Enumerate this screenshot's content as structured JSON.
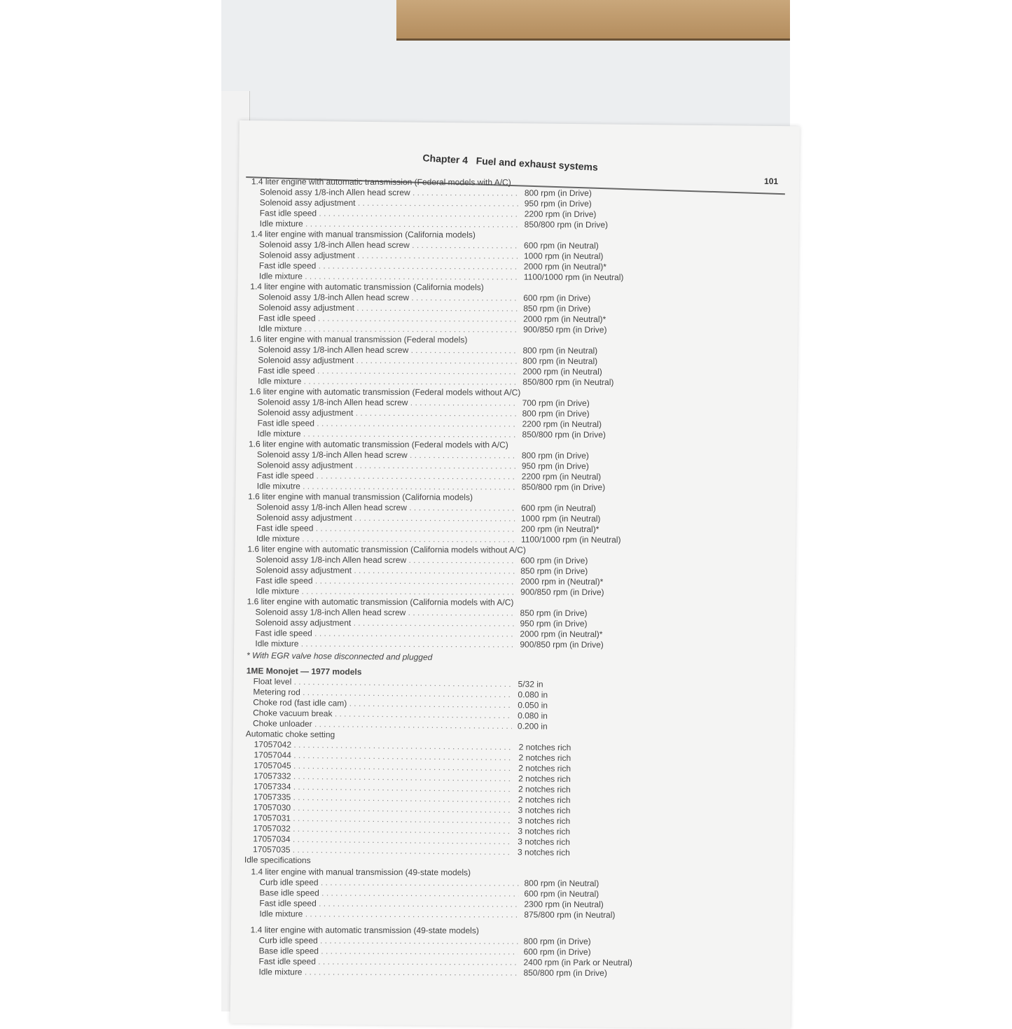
{
  "header": {
    "chapter": "Chapter 4",
    "title": "Fuel and exhaust systems",
    "page": "101"
  },
  "sections": [
    {
      "heading": "1.4 liter engine with automatic transmission (Federal models with A/C)",
      "rows": [
        [
          "Solenoid assy 1/8-inch Allen head screw",
          "800 rpm (in Drive)"
        ],
        [
          "Solenoid assy adjustment",
          "950 rpm (in Drive)"
        ],
        [
          "Fast idle speed",
          "2200 rpm (in Drive)"
        ],
        [
          "Idle mixture",
          "850/800 rpm (in Drive)"
        ]
      ]
    },
    {
      "heading": "1.4 liter engine with manual transmission (California models)",
      "rows": [
        [
          "Solenoid assy 1/8-inch Allen head screw",
          "600 rpm (in Neutral)"
        ],
        [
          "Solenoid assy adjustment",
          "1000 rpm (in Neutral)"
        ],
        [
          "Fast idle speed",
          "2000 rpm (in Neutral)*"
        ],
        [
          "Idle mixture",
          "1100/1000 rpm (in Neutral)"
        ]
      ]
    },
    {
      "heading": "1.4 liter engine with automatic transmission (California models)",
      "rows": [
        [
          "Solenoid assy 1/8-inch Allen head screw",
          "600 rpm (in Drive)"
        ],
        [
          "Solenoid assy adjustment",
          "850 rpm (in Drive)"
        ],
        [
          "Fast idle speed",
          "2000 rpm (in Neutral)*"
        ],
        [
          "Idle mixture",
          "900/850 rpm (in Drive)"
        ]
      ]
    },
    {
      "heading": "1.6 liter engine with manual transmission (Federal models)",
      "rows": [
        [
          "Solenoid assy 1/8-inch Allen head screw",
          "800 rpm (in Neutral)"
        ],
        [
          "Solenoid assy adjustment",
          "800 rpm (in Neutral)"
        ],
        [
          "Fast idle speed",
          "2000 rpm (in Neutral)"
        ],
        [
          "Idle mixture",
          "850/800 rpm (in Neutral)"
        ]
      ]
    },
    {
      "heading": "1.6 liter engine with automatic transmission (Federal models without A/C)",
      "rows": [
        [
          "Solenoid assy 1/8-inch Allen head screw",
          "700 rpm (in Drive)"
        ],
        [
          "Solenoid assy adjustment",
          "800 rpm (in Drive)"
        ],
        [
          "Fast idle speed",
          "2200 rpm (in Neutral)"
        ],
        [
          "Idle mixture",
          "850/800 rpm (in Drive)"
        ]
      ]
    },
    {
      "heading": "1.6 liter engine with automatic transmission (Federal models with A/C)",
      "rows": [
        [
          "Solenoid assy 1/8-inch Allen head screw",
          "800 rpm (in Drive)"
        ],
        [
          "Solenoid assy adjustment",
          "950 rpm (in Drive)"
        ],
        [
          "Fast idle speed",
          "2200 rpm (in Neutral)"
        ],
        [
          "Idle mixutre",
          "850/800 rpm (in Drive)"
        ]
      ]
    },
    {
      "heading": "1.6 liter engine with manual transmission (California models)",
      "rows": [
        [
          "Solenoid assy 1/8-inch Allen head screw",
          "600 rpm (in Neutral)"
        ],
        [
          "Solenoid assy adjustment",
          "1000 rpm (in Neutral)"
        ],
        [
          "Fast idle speed",
          "200 rpm (in Neutral)*"
        ],
        [
          "Idle mixture",
          "1100/1000 rpm (in Neutral)"
        ]
      ]
    },
    {
      "heading": "1.6 liter engine with automatic transmission (California models without A/C)",
      "rows": [
        [
          "Solenoid assy 1/8-inch Allen head screw",
          "600 rpm (in Drive)"
        ],
        [
          "Solenoid assy adjustment",
          "850 rpm (in Drive)"
        ],
        [
          "Fast idle speed",
          "2000 rpm in (Neutral)*"
        ],
        [
          "Idle mixture",
          "900/850 rpm (in Drive)"
        ]
      ]
    },
    {
      "heading": "1.6 liter engine with automatic transmission (California models with A/C)",
      "rows": [
        [
          "Solenoid assy 1/8-inch Allen head screw",
          "850 rpm (in Drive)"
        ],
        [
          "Solenoid assy adjustment",
          "950 rpm (in Drive)"
        ],
        [
          "Fast idle speed",
          "2000 rpm (in Neutral)*"
        ],
        [
          "Idle mixture",
          "900/850 rpm (in Drive)"
        ]
      ]
    }
  ],
  "footnote": "* With EGR valve hose disconnected and plugged",
  "monojet": {
    "heading": "1ME Monojet — 1977 models",
    "rows": [
      [
        "Float level",
        "5/32 in"
      ],
      [
        "Metering rod",
        "0.080 in"
      ],
      [
        "Choke rod (fast idle cam)",
        "0.050 in"
      ],
      [
        "Choke vacuum break",
        "0.080 in"
      ],
      [
        "Choke unloader",
        "0.200 in"
      ]
    ],
    "choke_heading": "Automatic choke setting",
    "choke_rows": [
      [
        "17057042",
        "2 notches rich"
      ],
      [
        "17057044",
        "2 notches rich"
      ],
      [
        "17057045",
        "2 notches rich"
      ],
      [
        "17057332",
        "2 notches rich"
      ],
      [
        "17057334",
        "2 notches rich"
      ],
      [
        "17057335",
        "2 notches rich"
      ],
      [
        "17057030",
        "3 notches rich"
      ],
      [
        "17057031",
        "3 notches rich"
      ],
      [
        "17057032",
        "3 notches rich"
      ],
      [
        "17057034",
        "3 notches rich"
      ],
      [
        "17057035",
        "3 notches rich"
      ]
    ],
    "idle_heading": "Idle specifications",
    "idle_sections": [
      {
        "heading": "1.4 liter engine with manual transmission (49-state models)",
        "rows": [
          [
            "Curb idle speed",
            "800 rpm (in Neutral)"
          ],
          [
            "Base idle speed",
            "600 rpm (in Neutral)"
          ],
          [
            "Fast idle speed",
            "2300 rpm (in Neutral)"
          ],
          [
            "Idle mixture",
            "875/800 rpm (in Neutral)"
          ]
        ]
      },
      {
        "heading": "1.4 liter engine with automatic transmission (49-state models)",
        "rows": [
          [
            "Curb idle speed",
            "800 rpm (in Drive)"
          ],
          [
            "Base idle speed",
            "600 rpm (in Drive)"
          ],
          [
            "Fast idle speed",
            "2400 rpm (in Park or Neutral)"
          ],
          [
            "Idle mixture",
            "850/800 rpm (in Drive)"
          ]
        ]
      }
    ]
  }
}
